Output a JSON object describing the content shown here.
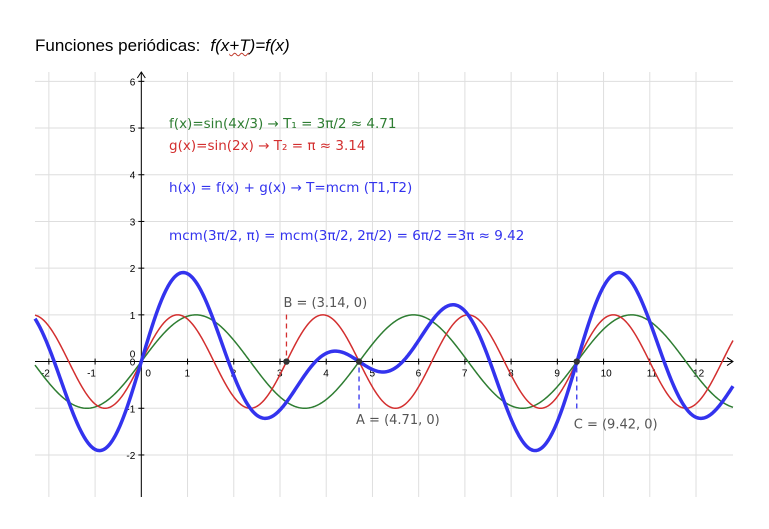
{
  "header": {
    "title": "Funciones periódicas:",
    "formula_a": "f(x",
    "formula_b": "+T",
    "formula_c": ")=f(x)"
  },
  "chart_data": {
    "type": "line",
    "title": "Funciones periódicas: f(x+T)=f(x)",
    "xlim": [
      -2.3,
      12.8
    ],
    "ylim": [
      -2.9,
      6.2
    ],
    "grid": true,
    "x_ticks": [
      "-2",
      "-1",
      "0",
      "1",
      "2",
      "3",
      "4",
      "5",
      "6",
      "7",
      "8",
      "9",
      "10",
      "11",
      "12"
    ],
    "y_ticks": [
      "-2",
      "-1",
      "0",
      "1",
      "2",
      "3",
      "4",
      "5",
      "6"
    ],
    "series": [
      {
        "name": "f(x)=sin(4x/3)",
        "expr": "sin(4x/3)",
        "color": "#2e7d32",
        "width": 1.5
      },
      {
        "name": "g(x)=sin(2x)",
        "expr": "sin(2x)",
        "color": "#d32f2f",
        "width": 1.5
      },
      {
        "name": "h(x) = f(x) + g(x)",
        "expr": "sin(4x/3)+sin(2x)",
        "color": "#3333ee",
        "width": 3.5
      }
    ],
    "annotations": [
      {
        "text": "f(x)=sin(4x/3) → T₁ = 3π/2 ≈ 4.71",
        "color": "#2e7d32"
      },
      {
        "text": "g(x)=sin(2x) → T₂ = π ≈ 3.14",
        "color": "#d32f2f"
      },
      {
        "text": "h(x) = f(x) + g(x) → T=mcm (T1,T2)",
        "color": "#3333ee"
      },
      {
        "text": "mcm(3π/2, π) = mcm(3π/2, 2π/2) = 6π/2 =3π ≈ 9.42",
        "color": "#3333ee"
      }
    ],
    "points": [
      {
        "label": "B = (3.14, 0)",
        "x": 3.14,
        "y": 0,
        "line_color": "#d32f2f"
      },
      {
        "label": "A = (4.71, 0)",
        "x": 4.71,
        "y": 0,
        "line_color": "#3333ee"
      },
      {
        "label": "C = (9.42, 0)",
        "x": 9.42,
        "y": 0,
        "line_color": "#3333ee"
      }
    ]
  }
}
